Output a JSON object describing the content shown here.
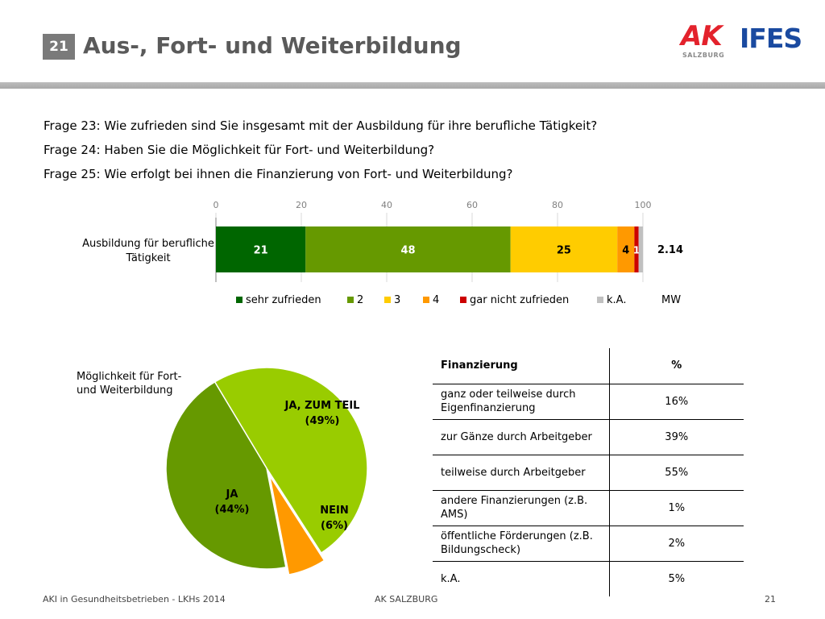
{
  "header": {
    "slide_number": "21",
    "title": "Aus-, Fort- und Weiterbildung",
    "logo_ak": "AK",
    "logo_ak_sub": "SALZBURG",
    "logo_ifes": "IFES"
  },
  "questions": [
    "Frage 23: Wie zufrieden sind Sie insgesamt mit der Ausbildung für ihre berufliche Tätigkeit?",
    "Frage 24: Haben Sie die Möglichkeit für Fort- und Weiterbildung?",
    "Frage 25: Wie erfolgt bei ihnen die Finanzierung von Fort- und Weiterbildung?"
  ],
  "chart_data": [
    {
      "type": "bar",
      "orientation": "horizontal-stacked",
      "categories": [
        "Ausbildung für berufliche Tätigkeit"
      ],
      "category_lines": [
        "Ausbildung für berufliche",
        "Tätigkeit"
      ],
      "xticks": [
        "0",
        "20",
        "40",
        "60",
        "80",
        "100"
      ],
      "xlim": [
        0,
        100
      ],
      "series": [
        {
          "name": "sehr zufrieden",
          "values": [
            21
          ],
          "label": "21",
          "color": "#006600"
        },
        {
          "name": "2",
          "values": [
            48
          ],
          "label": "48",
          "color": "#669900"
        },
        {
          "name": "3",
          "values": [
            25
          ],
          "label": "25",
          "color": "#ffcc00"
        },
        {
          "name": "4",
          "values": [
            4
          ],
          "label": "4",
          "color": "#ff9900"
        },
        {
          "name": "gar nicht zufrieden",
          "values": [
            1
          ],
          "label": "1",
          "color": "#cc0000"
        },
        {
          "name": "k.A.",
          "values": [
            1
          ],
          "label": "",
          "color": "#c0c0c0"
        }
      ],
      "mw_label": "MW",
      "mw_value": "2.14",
      "grid": true,
      "legend_position": "bottom"
    },
    {
      "type": "pie",
      "caption": "Möglichkeit für Fort- und Weiterbildung",
      "caption_lines": [
        "Möglichkeit für Fort-",
        "und Weiterbildung"
      ],
      "slices": [
        {
          "name": "JA, ZUM TEIL",
          "value": 49,
          "label": "(49%)",
          "color": "#99cc00"
        },
        {
          "name": "NEIN",
          "value": 6,
          "label": "(6%)",
          "color": "#ff9900"
        },
        {
          "name": "JA",
          "value": 44,
          "label": "(44%)",
          "color": "#669900"
        }
      ]
    }
  ],
  "table": {
    "headers": [
      "Finanzierung",
      "%"
    ],
    "rows": [
      {
        "label": "ganz oder teilweise durch Eigenfinanzierung",
        "value": "16%"
      },
      {
        "label": "zur Gänze durch Arbeitgeber",
        "value": "39%"
      },
      {
        "label": "teilweise durch Arbeitgeber",
        "value": "55%"
      },
      {
        "label": "andere Finanzierungen (z.B. AMS)",
        "value": "1%"
      },
      {
        "label": "öffentliche Förderungen (z.B. Bildungscheck)",
        "value": "2%"
      },
      {
        "label": "k.A.",
        "value": "5%"
      }
    ]
  },
  "footer": {
    "left": "AKI in Gesundheitsbetrieben - LKHs 2014",
    "center": "AK SALZBURG",
    "right": "21"
  }
}
